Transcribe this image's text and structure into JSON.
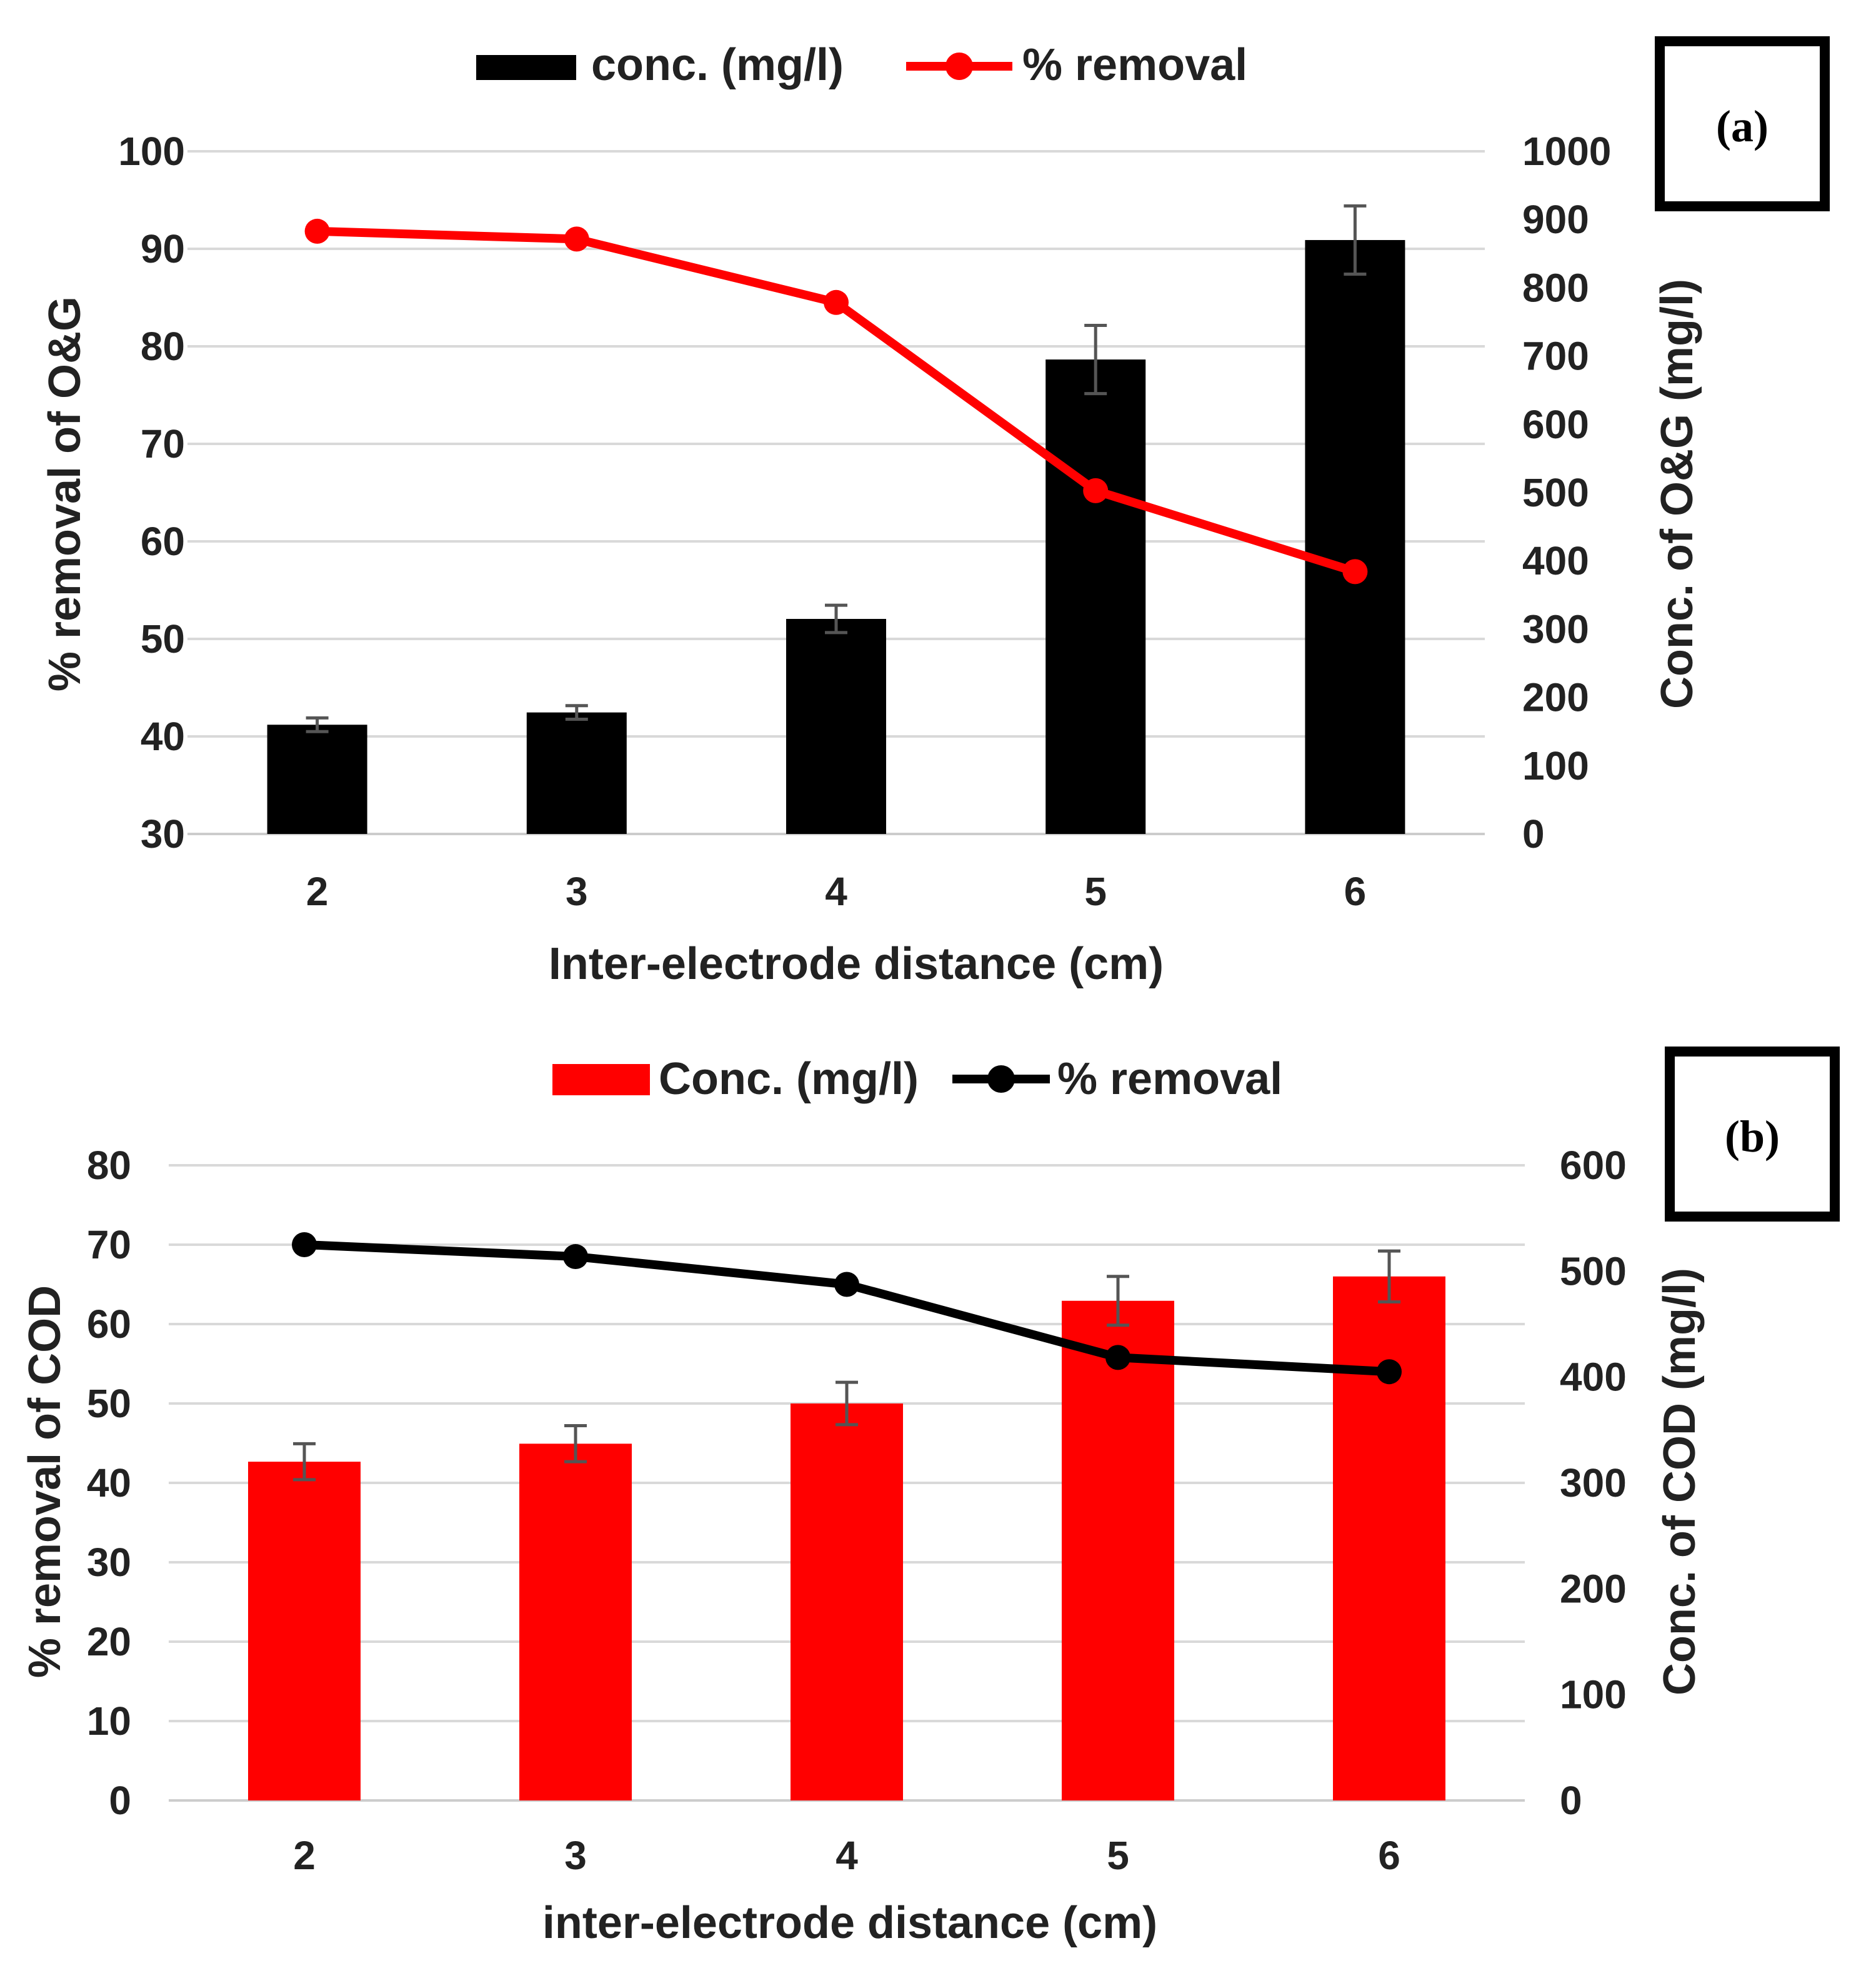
{
  "chart_data": [
    {
      "panel": "(a)",
      "type": "bar+line",
      "categories": [
        "2",
        "3",
        "4",
        "5",
        "6"
      ],
      "xlabel": "Inter-electrode distance (cm)",
      "ylabel_left": "% removal of O&G",
      "ylabel_right": "Conc. of O&G (mg/l)",
      "left_axis": {
        "min": 30,
        "max": 100,
        "step": 10,
        "ticks": [
          "30",
          "40",
          "50",
          "60",
          "70",
          "80",
          "90",
          "100"
        ]
      },
      "right_axis": {
        "min": 0,
        "max": 1000,
        "step": 100,
        "ticks": [
          "0",
          "100",
          "200",
          "300",
          "400",
          "500",
          "600",
          "700",
          "800",
          "900",
          "1000"
        ]
      },
      "bar_series": {
        "name": "conc. (mg/l)",
        "axis": "right",
        "color": "#000000",
        "values": [
          160,
          178,
          315,
          695,
          870
        ],
        "errors": [
          10,
          10,
          20,
          50,
          50
        ]
      },
      "line_series": {
        "name": "% removal",
        "axis": "left",
        "color": "#ff0000",
        "values": [
          91.8,
          91.0,
          84.5,
          65.2,
          56.9
        ]
      },
      "legend": [
        "conc. (mg/l)",
        "% removal"
      ],
      "gridlines": true
    },
    {
      "panel": "(b)",
      "type": "bar+line",
      "categories": [
        "2",
        "3",
        "4",
        "5",
        "6"
      ],
      "xlabel": "inter-electrode distance (cm)",
      "ylabel_left": "% removal of COD",
      "ylabel_right": "Conc. of COD (mg/l)",
      "left_axis": {
        "min": 0,
        "max": 80,
        "step": 10,
        "ticks": [
          "0",
          "10",
          "20",
          "30",
          "40",
          "50",
          "60",
          "70",
          "80"
        ]
      },
      "right_axis": {
        "min": 0,
        "max": 600,
        "step": 100,
        "ticks": [
          "0",
          "100",
          "200",
          "300",
          "400",
          "500",
          "600"
        ]
      },
      "bar_series": {
        "name": "Conc. (mg/l)",
        "axis": "right",
        "color": "#ff0000",
        "values": [
          320,
          337,
          375,
          472,
          495
        ],
        "errors": [
          17,
          17,
          20,
          23,
          24
        ]
      },
      "line_series": {
        "name": "% removal",
        "axis": "left",
        "color": "#000000",
        "values": [
          70.0,
          68.5,
          65.0,
          55.8,
          54.0
        ]
      },
      "legend": [
        "Conc. (mg/l)",
        "% removal"
      ],
      "gridlines": true
    }
  ]
}
